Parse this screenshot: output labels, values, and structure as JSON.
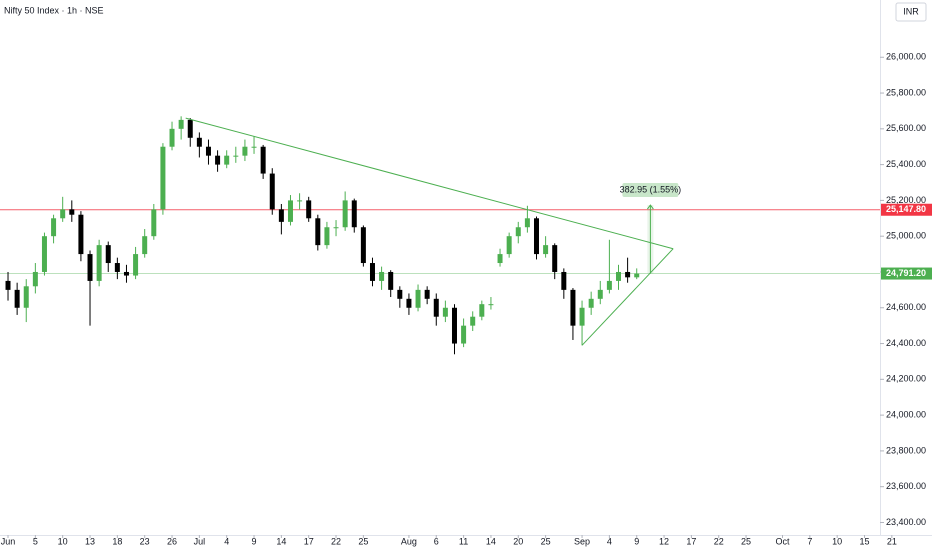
{
  "chart_data": {
    "type": "candlestick",
    "title": "Nifty 50 Index · 1h · NSE",
    "currency": "INR",
    "up_color": "#4caf50",
    "down_color": "#000000",
    "grid": false,
    "x": [
      0,
      1,
      2,
      3,
      4,
      5,
      6,
      7,
      8,
      9,
      10,
      11,
      12,
      13,
      14,
      15,
      16,
      17,
      18,
      19,
      20,
      21,
      22,
      23,
      24,
      25,
      26,
      27,
      28,
      29,
      30,
      31,
      32,
      33,
      34,
      35,
      36,
      37,
      38,
      39,
      40,
      41,
      42,
      43,
      44,
      45,
      46,
      47,
      48,
      49,
      50,
      51,
      52,
      53,
      54,
      55,
      56,
      57,
      58,
      59,
      60,
      61,
      62,
      63,
      64,
      65,
      66,
      67,
      68,
      69
    ],
    "open": [
      24750,
      24700,
      24600,
      24720,
      24800,
      25000,
      25100,
      25150,
      25120,
      24900,
      24750,
      24950,
      24850,
      24800,
      24780,
      24900,
      25000,
      25150,
      25500,
      25600,
      25650,
      25550,
      25500,
      25450,
      25400,
      25450,
      25450,
      25500,
      25500,
      25350,
      25150,
      25080,
      25200,
      25200,
      25100,
      24950,
      25050,
      25050,
      25200,
      25050,
      24850,
      24750,
      24800,
      24700,
      24650,
      24600,
      24700,
      24650,
      24550,
      24600,
      24400,
      24500,
      24550,
      24620,
      24850,
      24900,
      25000,
      25050,
      25100,
      24900,
      24950,
      24800,
      24700,
      24500,
      24600,
      24650,
      24700,
      24750,
      24800,
      24770
    ],
    "high": [
      24800,
      24740,
      24760,
      24850,
      25020,
      25120,
      25220,
      25200,
      25140,
      24920,
      24980,
      24970,
      24880,
      24840,
      24940,
      25040,
      25180,
      25520,
      25640,
      25670,
      25660,
      25580,
      25540,
      25480,
      25480,
      25500,
      25540,
      25560,
      25510,
      25380,
      25180,
      25230,
      25240,
      25220,
      25120,
      25080,
      25090,
      25250,
      25210,
      25060,
      24880,
      24830,
      24810,
      24720,
      24680,
      24730,
      24720,
      24680,
      24640,
      24620,
      24540,
      24580,
      24640,
      24660,
      24930,
      25020,
      25080,
      25170,
      25110,
      25000,
      24960,
      24820,
      24710,
      24640,
      24690,
      24750,
      24980,
      24840,
      24880,
      24820
    ],
    "low": [
      24640,
      24560,
      24520,
      24680,
      24780,
      24960,
      25080,
      25080,
      24860,
      24500,
      24720,
      24800,
      24760,
      24740,
      24760,
      24880,
      24980,
      25120,
      25480,
      25540,
      25500,
      25440,
      25400,
      25360,
      25380,
      25410,
      25420,
      25460,
      25320,
      25120,
      25010,
      25060,
      25150,
      25080,
      24920,
      24930,
      25000,
      25030,
      25020,
      24830,
      24720,
      24700,
      24660,
      24600,
      24560,
      24580,
      24620,
      24500,
      24520,
      24340,
      24380,
      24470,
      24530,
      24590,
      24830,
      24880,
      24960,
      25020,
      24870,
      24880,
      24760,
      24650,
      24420,
      24390,
      24560,
      24620,
      24680,
      24700,
      24740,
      24760
    ],
    "close": [
      24700,
      24600,
      24720,
      24800,
      25000,
      25100,
      25150,
      25120,
      24900,
      24750,
      24950,
      24850,
      24800,
      24780,
      24900,
      25000,
      25150,
      25500,
      25600,
      25650,
      25550,
      25500,
      25450,
      25400,
      25450,
      25450,
      25500,
      25500,
      25350,
      25150,
      25080,
      25200,
      25200,
      25100,
      24950,
      25050,
      25050,
      25200,
      25050,
      24850,
      24750,
      24800,
      24700,
      24650,
      24600,
      24700,
      24650,
      24550,
      24600,
      24400,
      24500,
      24550,
      24620,
      24620,
      24900,
      25000,
      25050,
      25100,
      24900,
      24950,
      24800,
      24700,
      24500,
      24600,
      24650,
      24700,
      24750,
      24800,
      24770,
      24791.2
    ],
    "xlim": [
      -0.88,
      95.7
    ],
    "xticks": [
      {
        "value": 0,
        "label": "Jun"
      },
      {
        "value": 3,
        "label": "5"
      },
      {
        "value": 6,
        "label": "10"
      },
      {
        "value": 9,
        "label": "13"
      },
      {
        "value": 12,
        "label": "18"
      },
      {
        "value": 15,
        "label": "23"
      },
      {
        "value": 18,
        "label": "26"
      },
      {
        "value": 21,
        "label": "Jul"
      },
      {
        "value": 24,
        "label": "4"
      },
      {
        "value": 27,
        "label": "9"
      },
      {
        "value": 30,
        "label": "14"
      },
      {
        "value": 33,
        "label": "17"
      },
      {
        "value": 36,
        "label": "22"
      },
      {
        "value": 39,
        "label": "25"
      },
      {
        "value": 44,
        "label": "Aug"
      },
      {
        "value": 47,
        "label": "6"
      },
      {
        "value": 50,
        "label": "11"
      },
      {
        "value": 53,
        "label": "14"
      },
      {
        "value": 56,
        "label": "20"
      },
      {
        "value": 59,
        "label": "25"
      },
      {
        "value": 63,
        "label": "Sep"
      },
      {
        "value": 66,
        "label": "4"
      },
      {
        "value": 69,
        "label": "9"
      },
      {
        "value": 72,
        "label": "12"
      },
      {
        "value": 75,
        "label": "17"
      },
      {
        "value": 78,
        "label": "22"
      },
      {
        "value": 81,
        "label": "25"
      },
      {
        "value": 85,
        "label": "Oct"
      },
      {
        "value": 88,
        "label": "7"
      },
      {
        "value": 91,
        "label": "10"
      },
      {
        "value": 94,
        "label": "15"
      },
      {
        "value": 97,
        "label": "21"
      }
    ],
    "ylim": [
      23330,
      26320
    ],
    "yticks": [
      {
        "value": 26000,
        "label": "26,000.00"
      },
      {
        "value": 25800,
        "label": "25,800.00"
      },
      {
        "value": 25600,
        "label": "25,600.00"
      },
      {
        "value": 25400,
        "label": "25,400.00"
      },
      {
        "value": 25200,
        "label": "25,200.00"
      },
      {
        "value": 25000,
        "label": "25,000.00"
      },
      {
        "value": 24800,
        "label": "24,800.00"
      },
      {
        "value": 24600,
        "label": "24,600.00"
      },
      {
        "value": 24400,
        "label": "24,400.00"
      },
      {
        "value": 24200,
        "label": "24,200.00"
      },
      {
        "value": 24000,
        "label": "24,000.00"
      },
      {
        "value": 23800,
        "label": "23,800.00"
      },
      {
        "value": 23600,
        "label": "23,600.00"
      },
      {
        "value": 23400,
        "label": "23,400.00"
      }
    ],
    "levels": [
      {
        "value": 25147.8,
        "label": "25,147.80",
        "color": "#f23645"
      },
      {
        "value": 24791.2,
        "label": "24,791.20",
        "color": "#4caf50"
      }
    ],
    "trendlines": [
      {
        "x": [
          19.5,
          73
        ],
        "y": [
          25660,
          24930
        ],
        "color": "#4caf50"
      },
      {
        "x": [
          63,
          73
        ],
        "y": [
          24390,
          24930
        ],
        "color": "#4caf50"
      }
    ],
    "measure": {
      "x": 70.5,
      "from": 24791.2,
      "to": 25174.15,
      "label": "382.95 (1.55%)",
      "color": "#4caf50"
    }
  }
}
